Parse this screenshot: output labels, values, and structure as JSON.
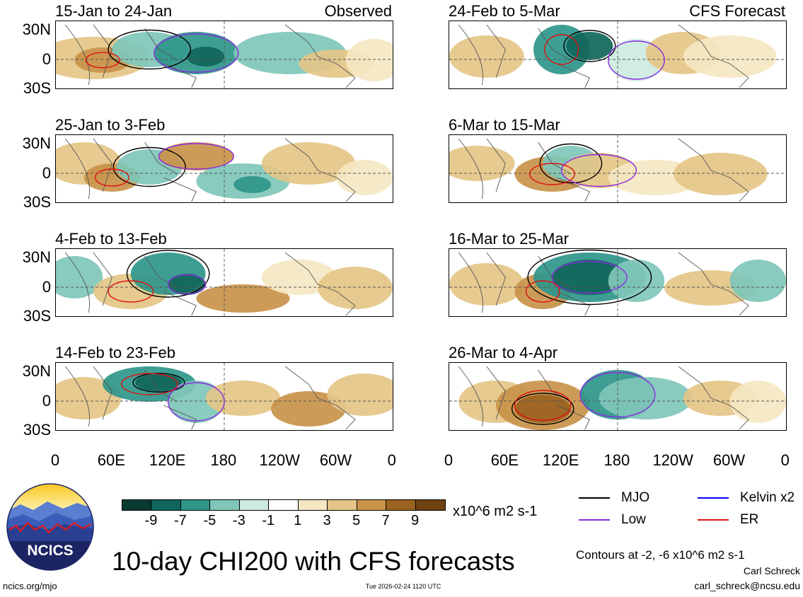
{
  "left_column": {
    "corner_label": "Observed",
    "panels": [
      {
        "title": "15-Jan to 24-Jan"
      },
      {
        "title": "25-Jan to 3-Feb"
      },
      {
        "title": "4-Feb to 13-Feb"
      },
      {
        "title": "14-Feb to 23-Feb"
      }
    ]
  },
  "right_column": {
    "corner_label": "CFS Forecast",
    "panels": [
      {
        "title": "24-Feb to 5-Mar"
      },
      {
        "title": "6-Mar to 15-Mar"
      },
      {
        "title": "16-Mar to 25-Mar"
      },
      {
        "title": "26-Mar to 4-Apr"
      }
    ]
  },
  "latitude_labels": [
    "30N",
    "0",
    "30S"
  ],
  "longitude_labels": [
    "0",
    "60E",
    "120E",
    "180",
    "120W",
    "60W",
    "0"
  ],
  "colorbar": {
    "ticks": [
      "-9",
      "-7",
      "-5",
      "-3",
      "-1",
      "1",
      "3",
      "5",
      "7",
      "9"
    ],
    "units": "x10^6 m2 s-1",
    "colors": [
      "#0a3b30",
      "#10665a",
      "#2f968a",
      "#7fc7b8",
      "#cdeae0",
      "#ffffff",
      "#f5e7c2",
      "#e4c587",
      "#c9934a",
      "#9b6221",
      "#6e4211"
    ]
  },
  "legend": {
    "items": [
      {
        "label": "MJO",
        "color": "#000000"
      },
      {
        "label": "Low",
        "color": "#8a2be2"
      },
      {
        "label": "Kelvin x2",
        "color": "#0000ff"
      },
      {
        "label": "ER",
        "color": "#dd1111"
      }
    ],
    "contour_note": "Contours at -2, -6 x10^6 m2 s-1",
    "author": "Carl Schreck",
    "email": "carl_schreck@ncsu.edu"
  },
  "main_title": "10-day CHI200 with CFS forecasts",
  "logo_text": "NCICS",
  "footer": {
    "url": "ncics.org/mjo",
    "timestamp": "Tue 2026-02-24 1120 UTC"
  }
}
